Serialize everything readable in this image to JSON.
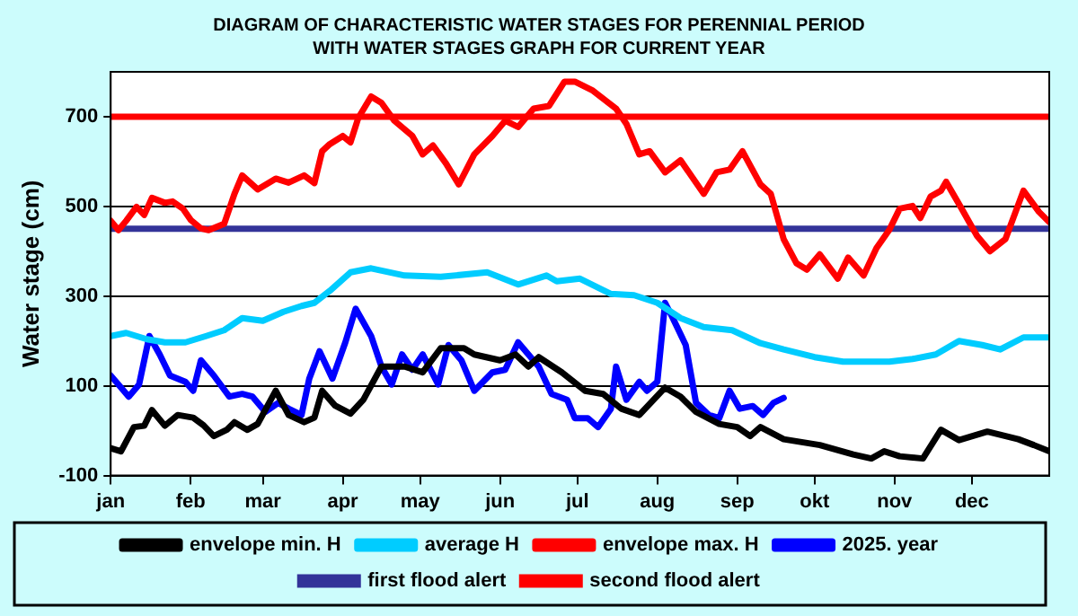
{
  "chart_data": {
    "type": "line",
    "title": "DIAGRAM OF CHARACTERISTIC WATER STAGES FOR PERENNIAL PERIOD WITH WATER STAGES GRAPH FOR CURRENT YEAR",
    "ylabel": "Water stage (cm)",
    "xlim": [
      "--01-01",
      "--12-31"
    ],
    "xticks": [
      {
        "value": "--01-01",
        "label": "jan"
      },
      {
        "value": "--02-01",
        "label": "feb"
      },
      {
        "value": "--03-01",
        "label": "mar"
      },
      {
        "value": "--04-01",
        "label": "apr"
      },
      {
        "value": "--05-01",
        "label": "may"
      },
      {
        "value": "--06-01",
        "label": "jun"
      },
      {
        "value": "--07-01",
        "label": "jul"
      },
      {
        "value": "--08-01",
        "label": "aug"
      },
      {
        "value": "--09-01",
        "label": "sep"
      },
      {
        "value": "--10-01",
        "label": "okt"
      },
      {
        "value": "--11-01",
        "label": "nov"
      },
      {
        "value": "--12-01",
        "label": "dec"
      }
    ],
    "ylim": [
      -100,
      800
    ],
    "yticks": [
      -100,
      100,
      300,
      500,
      700
    ],
    "grid": "y",
    "legend": "bottom",
    "marker": "none",
    "line_style": "solid",
    "series": [
      {
        "name": "envelope min. H",
        "color": "#000000",
        "x": [
          "--01-01",
          "--01-05",
          "--01-10",
          "--01-14",
          "--01-17",
          "--01-22",
          "--01-27",
          "--02-02",
          "--02-06",
          "--02-10",
          "--02-15",
          "--02-18",
          "--02-23",
          "--02-27",
          "--03-06",
          "--03-11",
          "--03-17",
          "--03-21",
          "--03-24",
          "--03-29",
          "--04-04",
          "--04-09",
          "--04-16",
          "--04-25",
          "--05-02",
          "--05-09",
          "--05-18",
          "--05-22",
          "--06-01",
          "--06-07",
          "--06-12",
          "--06-16",
          "--06-25",
          "--07-04",
          "--07-11",
          "--07-18",
          "--07-25",
          "--08-04",
          "--08-10",
          "--08-16",
          "--08-25",
          "--09-01",
          "--09-06",
          "--09-10",
          "--09-19",
          "--10-03",
          "--10-16",
          "--10-23",
          "--10-28",
          "--11-03",
          "--11-12",
          "--11-19",
          "--11-26",
          "--12-07",
          "--12-19",
          "--12-25",
          "--12-31"
        ],
        "values": [
          -39,
          -46,
          8,
          11,
          46,
          11,
          35,
          29,
          12,
          -12,
          2,
          19,
          2,
          15,
          89,
          35,
          19,
          29,
          89,
          56,
          38,
          69,
          143,
          143,
          130,
          184,
          184,
          170,
          157,
          170,
          143,
          164,
          130,
          89,
          82,
          49,
          35,
          96,
          76,
          42,
          15,
          8,
          -12,
          8,
          -19,
          -32,
          -53,
          -62,
          -46,
          -57,
          -62,
          2,
          -21,
          -2,
          -19,
          -32,
          -46
        ]
      },
      {
        "name": "average H",
        "color": "#00ccff",
        "x": [
          "--01-01",
          "--01-07",
          "--01-15",
          "--01-22",
          "--01-30",
          "--02-07",
          "--02-14",
          "--02-21",
          "--03-01",
          "--03-09",
          "--03-16",
          "--03-21",
          "--03-27",
          "--04-04",
          "--04-12",
          "--04-25",
          "--05-09",
          "--05-27",
          "--06-08",
          "--06-19",
          "--06-23",
          "--07-02",
          "--07-14",
          "--07-23",
          "--08-01",
          "--08-10",
          "--08-19",
          "--08-30",
          "--09-10",
          "--09-19",
          "--10-01",
          "--10-12",
          "--10-30",
          "--11-08",
          "--11-17",
          "--11-26",
          "--12-05",
          "--12-12",
          "--12-21",
          "--12-31"
        ],
        "values": [
          211,
          218,
          204,
          197,
          197,
          211,
          224,
          251,
          245,
          265,
          278,
          285,
          312,
          353,
          362,
          346,
          343,
          353,
          326,
          346,
          333,
          339,
          305,
          302,
          285,
          251,
          231,
          224,
          195,
          181,
          164,
          154,
          154,
          160,
          170,
          200,
          191,
          181,
          208,
          208
        ]
      },
      {
        "name": "envelope max. H",
        "color": "#ff0000",
        "x": [
          "--01-01",
          "--01-04",
          "--01-07",
          "--01-11",
          "--01-14",
          "--01-17",
          "--01-22",
          "--01-25",
          "--01-29",
          "--02-01",
          "--02-05",
          "--02-08",
          "--02-14",
          "--02-18",
          "--02-21",
          "--02-27",
          "--03-06",
          "--03-11",
          "--03-17",
          "--03-21",
          "--03-24",
          "--03-27",
          "--04-01",
          "--04-04",
          "--04-07",
          "--04-12",
          "--04-16",
          "--04-21",
          "--04-28",
          "--05-02",
          "--05-06",
          "--05-11",
          "--05-16",
          "--05-22",
          "--05-29",
          "--06-03",
          "--06-08",
          "--06-14",
          "--06-20",
          "--06-26",
          "--06-30",
          "--07-07",
          "--07-16",
          "--07-20",
          "--07-25",
          "--07-29",
          "--08-04",
          "--08-10",
          "--08-19",
          "--08-24",
          "--08-29",
          "--09-03",
          "--09-10",
          "--09-14",
          "--09-19",
          "--09-24",
          "--09-28",
          "--10-03",
          "--10-10",
          "--10-14",
          "--10-20",
          "--10-25",
          "--10-30",
          "--11-03",
          "--11-08",
          "--11-11",
          "--11-15",
          "--11-19",
          "--11-21",
          "--11-27",
          "--12-03",
          "--12-08",
          "--12-14",
          "--12-21",
          "--12-27",
          "--12-31"
        ],
        "values": [
          468,
          447,
          468,
          499,
          481,
          519,
          508,
          511,
          495,
          470,
          451,
          447,
          461,
          528,
          569,
          538,
          562,
          553,
          569,
          552,
          623,
          639,
          657,
          643,
          697,
          745,
          731,
          691,
          657,
          616,
          636,
          596,
          549,
          616,
          657,
          691,
          677,
          718,
          724,
          778,
          778,
          758,
          718,
          684,
          616,
          623,
          576,
          603,
          528,
          576,
          582,
          623,
          549,
          528,
          427,
          373,
          359,
          393,
          339,
          386,
          346,
          407,
          448,
          495,
          501,
          474,
          522,
          535,
          555,
          495,
          434,
          400,
          427,
          535,
          488,
          465
        ]
      },
      {
        "name": "2025. year",
        "color": "#0000ff",
        "x": [
          "--01-01",
          "--01-04",
          "--01-08",
          "--01-12",
          "--01-16",
          "--01-20",
          "--01-24",
          "--01-30",
          "--02-02",
          "--02-05",
          "--02-10",
          "--02-16",
          "--02-21",
          "--02-25",
          "--03-02",
          "--03-07",
          "--03-11",
          "--03-16",
          "--03-19",
          "--03-23",
          "--03-28",
          "--04-02",
          "--04-06",
          "--04-12",
          "--04-16",
          "--04-20",
          "--04-24",
          "--04-28",
          "--05-02",
          "--05-08",
          "--05-12",
          "--05-17",
          "--05-22",
          "--05-29",
          "--06-03",
          "--06-08",
          "--06-16",
          "--06-21",
          "--06-27",
          "--06-30",
          "--07-05",
          "--07-09",
          "--07-14",
          "--07-16",
          "--07-20",
          "--07-25",
          "--07-28",
          "--08-01",
          "--08-04",
          "--08-07",
          "--08-12",
          "--08-16",
          "--08-21",
          "--08-25",
          "--08-29",
          "--09-02",
          "--09-07",
          "--09-11",
          "--09-15",
          "--09-19"
        ],
        "values": [
          123,
          103,
          76,
          103,
          211,
          170,
          123,
          109,
          89,
          157,
          123,
          76,
          82,
          76,
          42,
          62,
          49,
          35,
          116,
          177,
          116,
          197,
          272,
          211,
          143,
          103,
          170,
          136,
          170,
          103,
          191,
          157,
          89,
          130,
          136,
          197,
          143,
          82,
          69,
          28,
          28,
          8,
          49,
          143,
          69,
          109,
          89,
          109,
          285,
          251,
          191,
          62,
          35,
          28,
          89,
          49,
          55,
          35,
          62,
          73
        ]
      }
    ],
    "ref_lines": [
      {
        "axis": "y",
        "value": 450,
        "label": "first flood alert",
        "color": "#333399"
      },
      {
        "axis": "y",
        "value": 700,
        "label": "second flood alert",
        "color": "#ff0000"
      }
    ]
  }
}
